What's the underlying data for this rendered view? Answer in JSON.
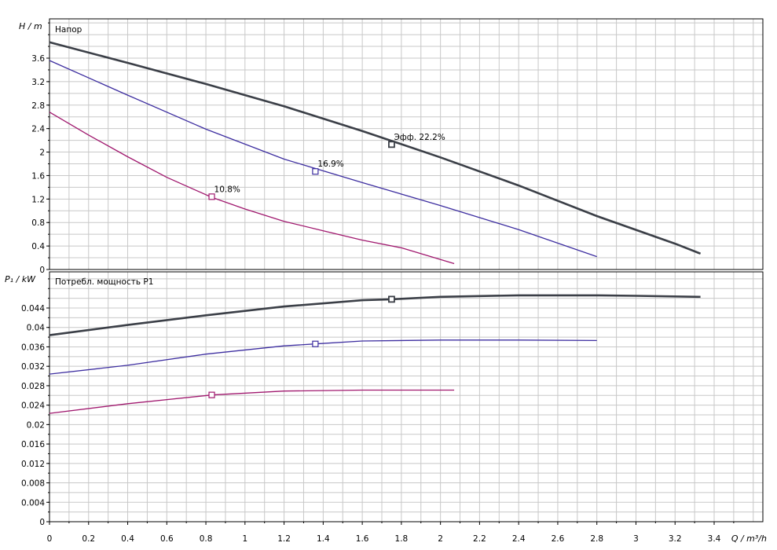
{
  "chart_data": [
    {
      "type": "line",
      "title": "Напор",
      "ylabel": "H / m",
      "xlabel": "",
      "xlim": [
        0,
        3.6
      ],
      "ylim": [
        0,
        4.0
      ],
      "x_ticks": [
        0,
        0.2,
        0.4,
        0.6,
        0.8,
        1,
        1.2,
        1.4,
        1.6,
        1.8,
        2,
        2.2,
        2.4,
        2.6,
        2.8,
        3,
        3.2,
        3.4
      ],
      "x_tick_labels": [
        "0",
        "0.2",
        "0.4",
        "0.6",
        "0.8",
        "1",
        "1.2",
        "1.4",
        "1.6",
        "1.8",
        "2",
        "2.2",
        "2.4",
        "2.6",
        "2.8",
        "3",
        "3.2",
        "3.4"
      ],
      "y_ticks": [
        0,
        0.4,
        0.8,
        1.2,
        1.6,
        2,
        2.4,
        2.8,
        3.2,
        3.6
      ],
      "y_tick_labels": [
        "0",
        "0.4",
        "0.8",
        "1.2",
        "1.6",
        "2",
        "2.4",
        "2.8",
        "3.2",
        "3.6"
      ],
      "grid": true,
      "series": [
        {
          "color": "#3b3f47",
          "width": 2.6,
          "x": [
            0,
            0.4,
            0.8,
            1.2,
            1.6,
            2.0,
            2.4,
            2.8,
            3.2,
            3.33
          ],
          "y": [
            3.87,
            3.52,
            3.16,
            2.78,
            2.36,
            1.91,
            1.43,
            0.91,
            0.44,
            0.27
          ],
          "marker": {
            "x": 1.75,
            "y": 2.13,
            "label": "Эфф.  22.2%"
          }
        },
        {
          "color": "#3d2ea0",
          "width": 1.3,
          "x": [
            0,
            0.4,
            0.8,
            1.2,
            1.6,
            2.0,
            2.4,
            2.8
          ],
          "y": [
            3.56,
            2.97,
            2.39,
            1.88,
            1.48,
            1.09,
            0.68,
            0.22
          ],
          "marker": {
            "x": 1.36,
            "y": 1.67,
            "label": "16.9%"
          }
        },
        {
          "color": "#a0186e",
          "width": 1.3,
          "x": [
            0,
            0.2,
            0.4,
            0.6,
            0.83,
            1.0,
            1.2,
            1.4,
            1.6,
            1.8,
            2.07
          ],
          "y": [
            2.68,
            2.29,
            1.92,
            1.57,
            1.23,
            1.03,
            0.82,
            0.66,
            0.5,
            0.37,
            0.1
          ],
          "marker": {
            "x": 0.83,
            "y": 1.24,
            "label": "10.8%"
          }
        }
      ]
    },
    {
      "type": "line",
      "title": "Потребл. мощность P1",
      "ylabel": "P₁ / kW",
      "xlabel": "Q / m³/h",
      "xlim": [
        0,
        3.6
      ],
      "ylim": [
        0,
        0.05
      ],
      "x_ticks": [
        0,
        0.2,
        0.4,
        0.6,
        0.8,
        1,
        1.2,
        1.4,
        1.6,
        1.8,
        2,
        2.2,
        2.4,
        2.6,
        2.8,
        3,
        3.2,
        3.4
      ],
      "x_tick_labels": [
        "0",
        "0.2",
        "0.4",
        "0.6",
        "0.8",
        "1",
        "1.2",
        "1.4",
        "1.6",
        "1.8",
        "2",
        "2.2",
        "2.4",
        "2.6",
        "2.8",
        "3",
        "3.2",
        "3.4"
      ],
      "y_ticks": [
        0,
        0.004,
        0.008,
        0.012,
        0.016,
        0.02,
        0.024,
        0.028,
        0.032,
        0.036,
        0.04,
        0.044
      ],
      "y_tick_labels": [
        "0",
        "0.004",
        "0.008",
        "0.012",
        "0.016",
        "0.02",
        "0.024",
        "0.028",
        "0.032",
        "0.036",
        "0.04",
        "0.044"
      ],
      "grid": true,
      "series": [
        {
          "color": "#3b3f47",
          "width": 2.6,
          "x": [
            0,
            0.4,
            0.8,
            1.2,
            1.6,
            1.75,
            2.0,
            2.4,
            2.8,
            3.0,
            3.33
          ],
          "y": [
            0.0384,
            0.0405,
            0.0425,
            0.0443,
            0.0456,
            0.0458,
            0.0463,
            0.0466,
            0.0466,
            0.0465,
            0.0463
          ],
          "marker": {
            "x": 1.75,
            "y": 0.0458
          }
        },
        {
          "color": "#3d2ea0",
          "width": 1.3,
          "x": [
            0,
            0.4,
            0.8,
            1.2,
            1.36,
            1.6,
            2.0,
            2.4,
            2.8
          ],
          "y": [
            0.0304,
            0.0322,
            0.0345,
            0.0362,
            0.0366,
            0.0372,
            0.0374,
            0.0374,
            0.0373
          ],
          "marker": {
            "x": 1.36,
            "y": 0.0366
          }
        },
        {
          "color": "#a0186e",
          "width": 1.3,
          "x": [
            0,
            0.4,
            0.83,
            1.2,
            1.6,
            2.07
          ],
          "y": [
            0.0223,
            0.0243,
            0.0261,
            0.0269,
            0.0271,
            0.0271
          ],
          "marker": {
            "x": 0.83,
            "y": 0.0261
          }
        }
      ]
    }
  ]
}
